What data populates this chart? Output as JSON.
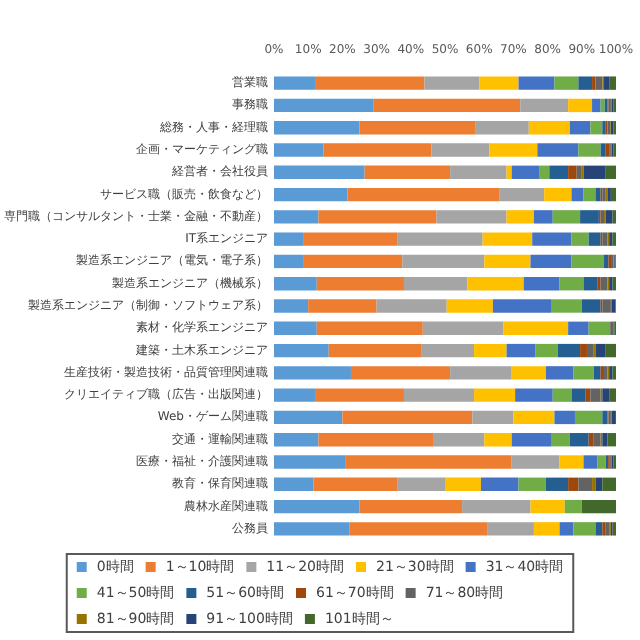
{
  "chart_data": {
    "type": "bar",
    "orientation": "horizontal",
    "stacked": true,
    "legend": "bottom",
    "grid": false,
    "categories": [
      "営業職",
      "事務職",
      "総務・人事・経理職",
      "企画・マーケティング職",
      "経営者・会社役員",
      "サービス職（販売・飲食など）",
      "専門職（コンサルタント・士業・金融・不動産）",
      "IT系エンジニア",
      "製造系エンジニア（電気・電子系）",
      "製造系エンジニア（機械系）",
      "製造系エンジニア（制御・ソフトウェア系）",
      "素材・化学系エンジニア",
      "建築・土木系エンジニア",
      "生産技術・製造技術・品質管理関連職",
      "クリエイティブ職（広告・出版関連）",
      "Web・ゲーム関連職",
      "交通・運輸関連職",
      "医療・福祉・介護関連職",
      "教育・保育関連職",
      "農林水産関連職",
      "公務員"
    ],
    "xlim": [
      0,
      100
    ],
    "xticks": [
      {
        "value": 0,
        "label": "0%"
      },
      {
        "value": 10,
        "label": "10%"
      },
      {
        "value": 20,
        "label": "20%"
      },
      {
        "value": 30,
        "label": "30%"
      },
      {
        "value": 40,
        "label": "40%"
      },
      {
        "value": 50,
        "label": "50%"
      },
      {
        "value": 60,
        "label": "60%"
      },
      {
        "value": 70,
        "label": "70%"
      },
      {
        "value": 80,
        "label": "80%"
      },
      {
        "value": 90,
        "label": "90%"
      },
      {
        "value": 100,
        "label": "100%"
      }
    ],
    "series": [
      {
        "name": "0時間",
        "color": "#5b9bd5",
        "values": [
          12,
          29,
          25,
          14.5,
          26.5,
          21.5,
          13,
          8.5,
          8.5,
          12.5,
          10,
          12.5,
          16,
          22.5,
          12,
          20,
          13,
          21,
          11.5,
          25,
          22
        ]
      },
      {
        "name": "1～10時間",
        "color": "#ed7d31",
        "values": [
          32,
          43,
          34,
          31.5,
          25,
          44.5,
          34.5,
          27.5,
          29,
          25.5,
          20,
          31,
          27,
          29,
          26,
          38,
          33.5,
          48.5,
          24.5,
          30,
          40.5
        ]
      },
      {
        "name": "11～20時間",
        "color": "#a5a5a5",
        "values": [
          16,
          14,
          15.5,
          17,
          16.5,
          13,
          20.5,
          25,
          24,
          18.5,
          20.5,
          23.5,
          15.5,
          18,
          20.5,
          12,
          15,
          14,
          14,
          20,
          13.5
        ]
      },
      {
        "name": "21～30時間",
        "color": "#ffc000",
        "values": [
          11.5,
          7,
          12,
          14,
          1.5,
          8,
          8,
          14.5,
          13.5,
          16.5,
          13.5,
          19,
          9.5,
          10,
          12,
          12,
          8,
          7,
          10.5,
          10,
          7.5
        ]
      },
      {
        "name": "31～40時間",
        "color": "#4472c4",
        "values": [
          10.5,
          2.5,
          6,
          12,
          8,
          3.5,
          5.5,
          11.5,
          12,
          10.5,
          17,
          6,
          8.5,
          8,
          11,
          6,
          11.5,
          4,
          11,
          0,
          4
        ]
      },
      {
        "name": "41～50時間",
        "color": "#70ad47",
        "values": [
          7,
          1.2,
          3.5,
          6.5,
          3,
          3.5,
          8,
          5,
          9.5,
          7,
          9,
          6.3,
          6.5,
          6,
          5.5,
          8,
          5.5,
          2.5,
          8,
          5,
          6.5
        ]
      },
      {
        "name": "51～60時間",
        "color": "#255e91",
        "values": [
          4,
          0.8,
          1,
          1.5,
          5.5,
          1.5,
          5.5,
          3.5,
          1.3,
          4,
          5.5,
          0,
          6.5,
          2,
          4,
          1.5,
          5.5,
          0.7,
          6.5,
          0,
          2
        ]
      },
      {
        "name": "61～70時間",
        "color": "#9e480e",
        "values": [
          1,
          0.3,
          0.5,
          1,
          2.5,
          0.5,
          0.5,
          0.5,
          1,
          1,
          0.5,
          0,
          2,
          1,
          1.5,
          0.3,
          1.5,
          0.3,
          3,
          0,
          1
        ]
      },
      {
        "name": "71～80時間",
        "color": "#636363",
        "values": [
          2,
          0.7,
          0.8,
          0.5,
          1.5,
          1,
          1,
          1.5,
          0.5,
          2,
          2.5,
          1,
          2,
          1,
          3,
          0.7,
          2,
          0.5,
          4,
          0,
          1
        ]
      },
      {
        "name": "81～90時間",
        "color": "#997300",
        "values": [
          0.5,
          0.2,
          0.2,
          0.2,
          0.5,
          0.5,
          0.5,
          0.5,
          0.2,
          0.5,
          0.3,
          0,
          0.5,
          0.5,
          0.5,
          0.2,
          0.5,
          0.2,
          1,
          0,
          0.5
        ]
      },
      {
        "name": "91～100時間",
        "color": "#264478",
        "values": [
          1.5,
          0.5,
          0.7,
          0.5,
          6.5,
          1,
          2,
          1,
          0.3,
          1,
          1,
          0.2,
          3,
          1,
          2,
          1,
          1.5,
          0.5,
          2,
          0,
          0.5
        ]
      },
      {
        "name": "101時間～",
        "color": "#43682b",
        "values": [
          2,
          0.8,
          0.8,
          0.8,
          3,
          1.5,
          1,
          1,
          0.2,
          1,
          0.2,
          0.5,
          3,
          1,
          2,
          0.3,
          2.5,
          0.8,
          4,
          10,
          1
        ]
      }
    ]
  }
}
